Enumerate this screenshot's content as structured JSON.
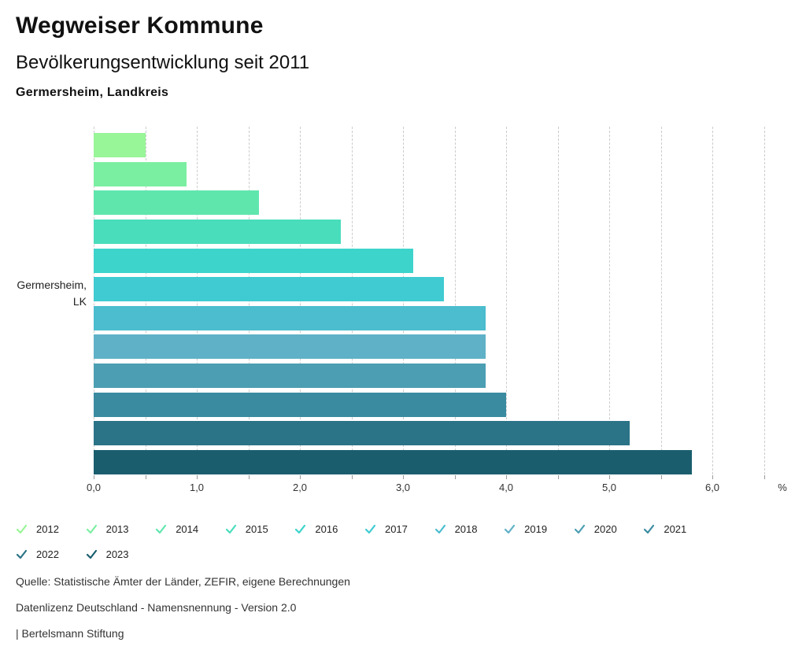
{
  "header": {
    "title": "Wegweiser Kommune",
    "subtitle": "Bevölkerungsentwicklung seit 2011",
    "region": "Germersheim, Landkreis"
  },
  "chart_data": {
    "type": "bar",
    "orientation": "horizontal",
    "title": "Bevölkerungsentwicklung seit 2011",
    "row_label_lines": [
      "Germersheim,",
      "LK"
    ],
    "categories": [
      "2012",
      "2013",
      "2014",
      "2015",
      "2016",
      "2017",
      "2018",
      "2019",
      "2020",
      "2021",
      "2022",
      "2023"
    ],
    "values": [
      0.5,
      0.9,
      1.6,
      2.4,
      3.1,
      3.4,
      3.8,
      3.8,
      3.8,
      4.0,
      5.2,
      5.8
    ],
    "colors": [
      "#98F598",
      "#7BEFA1",
      "#5FE6AD",
      "#49DDBC",
      "#3DD4CB",
      "#3FCBD1",
      "#4BBDCE",
      "#5FB1C7",
      "#4C9EB2",
      "#3A8BA0",
      "#2B7386",
      "#1A5E6E"
    ],
    "xlabel": "%",
    "xlim": [
      0,
      6.5
    ],
    "x_tick_labels": [
      "0,0",
      "1,0",
      "2,0",
      "3,0",
      "4,0",
      "5,0",
      "6,0"
    ],
    "x_minor_tick_step": 0.5,
    "grid": "vertical-dashed",
    "legend_position": "bottom"
  },
  "footer": {
    "source": "Quelle: Statistische Ämter der Länder, ZEFIR, eigene Berechnungen",
    "license": "Datenlizenz Deutschland - Namensnennung - Version 2.0",
    "brand": "| Bertelsmann Stiftung"
  }
}
